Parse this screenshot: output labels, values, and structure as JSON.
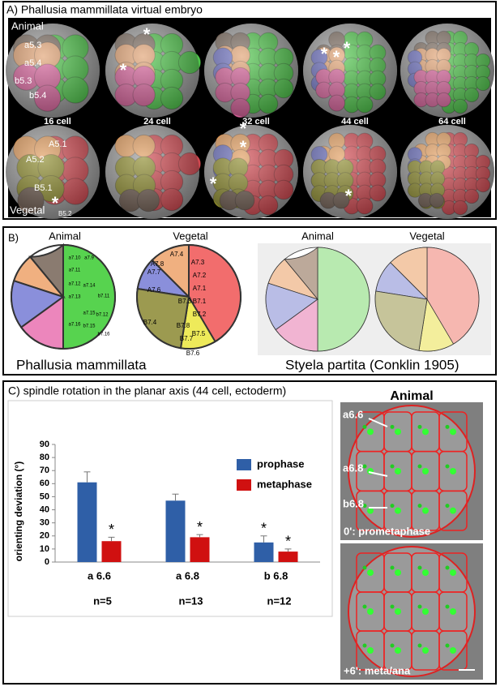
{
  "panel_a": {
    "title": "A) Phallusia mammillata virtual embryo",
    "animal": "Animal",
    "vegetal": "Vegetal",
    "stages": [
      "16 cell",
      "24 cell",
      "32 cell",
      "44 cell",
      "64 cell"
    ],
    "cell_labels": [
      "a5.3",
      "a5.4",
      "b5.3",
      "b5.4",
      "A5.1",
      "A5.2",
      "B5.1",
      "B5.2"
    ],
    "asterisk": "*"
  },
  "panel_b": {
    "label": "B)",
    "animal": "Animal",
    "vegetal": "Vegetal",
    "species_1": "Phallusia mammillata",
    "species_2": "Styela partita (Conklin 1905)",
    "animal_cells": [
      "a7.10",
      "a7.9",
      "a7.11",
      "a7.12",
      "a7.13",
      "a7.14",
      "a7.15",
      "a7.16",
      "b7.15",
      "b7.16",
      "b7.12",
      "b7.11"
    ],
    "vegetal_cells": [
      "A7.4",
      "A7.3",
      "A7.8",
      "A7.7",
      "A7.2",
      "A7.6",
      "A7.1",
      "B7.3",
      "B7.1",
      "B7.4",
      "B7.2",
      "B7.8",
      "B7.7",
      "B7.5",
      "B7.6"
    ]
  },
  "panel_c": {
    "title": "C) spindle rotation in the planar axis (44 cell, ectoderm)",
    "image_title": "Animal",
    "cell_labels": [
      "a6.6",
      "a6.8",
      "b6.8"
    ],
    "time_labels": [
      "0': prometaphase",
      "+6': meta/ana"
    ]
  },
  "chart_data": {
    "type": "bar",
    "y_label": "orienting deviation (°)",
    "categories": [
      "a 6.6",
      "a 6.8",
      "b 6.8"
    ],
    "annotations": [
      "n=5",
      "n=13",
      "n=12"
    ],
    "significance": "*",
    "series": [
      {
        "name": "prophase",
        "color": "#2f5fa7",
        "values": [
          61,
          47,
          15
        ],
        "errors": [
          8,
          5,
          5
        ]
      },
      {
        "name": "metaphase",
        "color": "#d01010",
        "values": [
          16,
          19,
          8
        ],
        "errors": [
          3,
          2,
          2
        ]
      }
    ],
    "ylim": [
      0,
      90
    ],
    "yticks": [
      0,
      10,
      20,
      30,
      40,
      50,
      60,
      70,
      80,
      90
    ],
    "legend": "upper right"
  }
}
